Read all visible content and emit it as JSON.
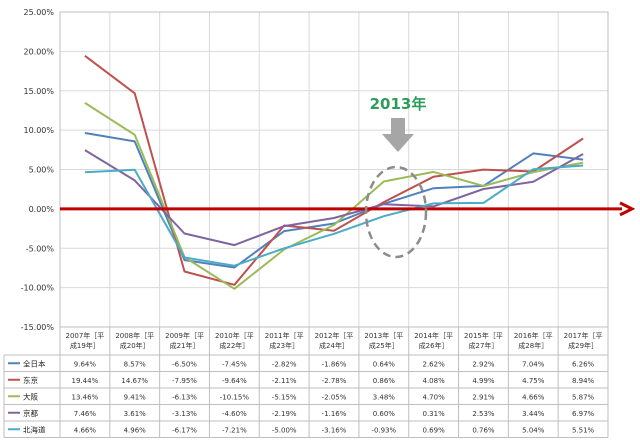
{
  "chart_data": {
    "type": "line",
    "title": "",
    "xlabel": "",
    "ylabel": "",
    "ylim": [
      -15,
      25
    ],
    "y_ticks": [
      "25.00%",
      "20.00%",
      "15.00%",
      "10.00%",
      "5.00%",
      "0.00%",
      "-5.00%",
      "-10.00%",
      "-15.00%"
    ],
    "categories": [
      "2007年［平成19年］",
      "2008年［平成20年］",
      "2009年［平成21年］",
      "2010年［平成22年］",
      "2011年［平成23年］",
      "2012年［平成24年］",
      "2013年［平成25年］",
      "2014年［平成26年］",
      "2015年［平成27年］",
      "2016年［平成28年］",
      "2017年［平成29年］"
    ],
    "series": [
      {
        "name": "全日本",
        "color": "#4f81bd",
        "values": [
          9.64,
          8.57,
          -6.5,
          -7.45,
          -2.82,
          -1.86,
          0.64,
          2.62,
          2.92,
          7.04,
          6.26
        ],
        "labels": [
          "9.64%",
          "8.57%",
          "-6.50%",
          "-7.45%",
          "-2.82%",
          "-1.86%",
          "0.64%",
          "2.62%",
          "2.92%",
          "7.04%",
          "6.26%"
        ]
      },
      {
        "name": "东京",
        "color": "#c0504d",
        "values": [
          19.44,
          14.67,
          -7.95,
          -9.64,
          -2.11,
          -2.78,
          0.86,
          4.08,
          4.99,
          4.75,
          8.94
        ],
        "labels": [
          "19.44%",
          "14.67%",
          "-7.95%",
          "-9.64%",
          "-2.11%",
          "-2.78%",
          "0.86%",
          "4.08%",
          "4.99%",
          "4.75%",
          "8.94%"
        ]
      },
      {
        "name": "大阪",
        "color": "#9bbb59",
        "values": [
          13.46,
          9.41,
          -6.13,
          -10.15,
          -5.15,
          -2.05,
          3.48,
          4.7,
          2.91,
          4.66,
          5.87
        ],
        "labels": [
          "13.46%",
          "9.41%",
          "-6.13%",
          "-10.15%",
          "-5.15%",
          "-2.05%",
          "3.48%",
          "4.70%",
          "2.91%",
          "4.66%",
          "5.87%"
        ]
      },
      {
        "name": "京都",
        "color": "#8064a2",
        "values": [
          7.46,
          3.61,
          -3.13,
          -4.6,
          -2.19,
          -1.16,
          0.6,
          0.31,
          2.53,
          3.44,
          6.97
        ],
        "labels": [
          "7.46%",
          "3.61%",
          "-3.13%",
          "-4.60%",
          "-2.19%",
          "-1.16%",
          "0.60%",
          "0.31%",
          "2.53%",
          "3.44%",
          "6.97%"
        ]
      },
      {
        "name": "北海道",
        "color": "#4bacc6",
        "values": [
          4.66,
          4.96,
          -6.17,
          -7.21,
          -5.0,
          -3.16,
          -0.93,
          0.69,
          0.76,
          5.04,
          5.51
        ],
        "labels": [
          "4.66%",
          "4.96%",
          "-6.17%",
          "-7.21%",
          "-5.00%",
          "-3.16%",
          "-0.93%",
          "0.69%",
          "0.76%",
          "5.04%",
          "5.51%"
        ]
      }
    ],
    "annotation": {
      "text": "2013年",
      "color": "#2a9d5c",
      "highlight_category": "2013年［平成25年］"
    },
    "zero_line_color": "#c00000",
    "grid": true,
    "legend": "table-bottom-left"
  }
}
